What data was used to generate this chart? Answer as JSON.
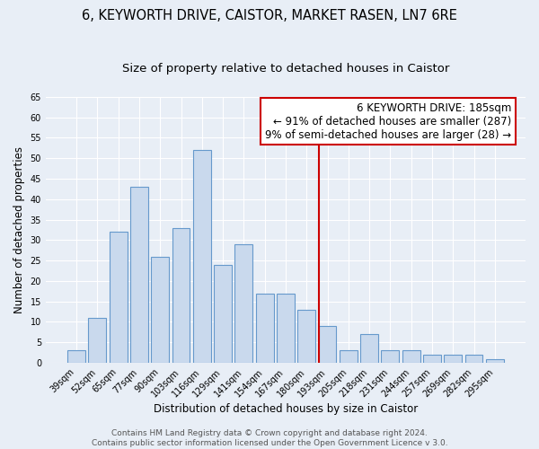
{
  "title1": "6, KEYWORTH DRIVE, CAISTOR, MARKET RASEN, LN7 6RE",
  "title2": "Size of property relative to detached houses in Caistor",
  "xlabel": "Distribution of detached houses by size in Caistor",
  "ylabel": "Number of detached properties",
  "categories": [
    "39sqm",
    "52sqm",
    "65sqm",
    "77sqm",
    "90sqm",
    "103sqm",
    "116sqm",
    "129sqm",
    "141sqm",
    "154sqm",
    "167sqm",
    "180sqm",
    "193sqm",
    "205sqm",
    "218sqm",
    "231sqm",
    "244sqm",
    "257sqm",
    "269sqm",
    "282sqm",
    "295sqm"
  ],
  "values": [
    3,
    11,
    32,
    43,
    26,
    33,
    52,
    24,
    29,
    17,
    17,
    13,
    9,
    3,
    7,
    3,
    3,
    2,
    2,
    2,
    1
  ],
  "bar_color": "#c9d9ed",
  "bar_edge_color": "#6699cc",
  "bar_edge_width": 0.8,
  "ylim": [
    0,
    65
  ],
  "yticks": [
    0,
    5,
    10,
    15,
    20,
    25,
    30,
    35,
    40,
    45,
    50,
    55,
    60,
    65
  ],
  "red_line_index": 12,
  "red_line_color": "#cc0000",
  "annotation_text": "6 KEYWORTH DRIVE: 185sqm\n← 91% of detached houses are smaller (287)\n9% of semi-detached houses are larger (28) →",
  "annotation_box_color": "#ffffff",
  "annotation_border_color": "#cc0000",
  "footer_text": "Contains HM Land Registry data © Crown copyright and database right 2024.\nContains public sector information licensed under the Open Government Licence v 3.0.",
  "bg_color": "#e8eef6",
  "grid_color": "#ffffff",
  "title1_fontsize": 10.5,
  "title2_fontsize": 9.5,
  "xlabel_fontsize": 8.5,
  "ylabel_fontsize": 8.5,
  "tick_fontsize": 7,
  "footer_fontsize": 6.5,
  "annotation_fontsize": 8.5
}
